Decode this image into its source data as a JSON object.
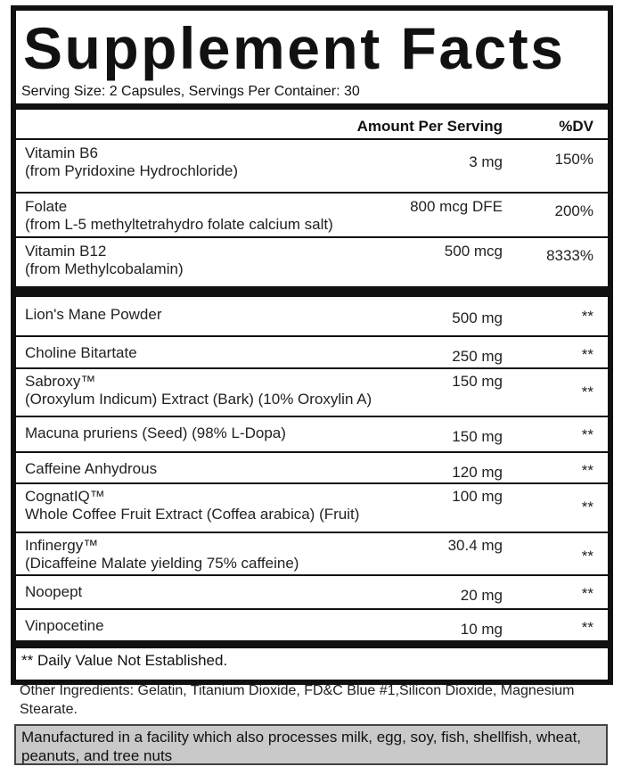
{
  "title": "Supplement Facts",
  "serving": "Serving Size: 2 Capsules, Servings Per Container: 30",
  "header": {
    "amount": "Amount Per Serving",
    "dv": "%DV"
  },
  "vitamins": [
    {
      "name": "Vitamin B6",
      "source": "(from Pyridoxine Hydrochloride)",
      "amount": "3 mg",
      "dv": "150%"
    },
    {
      "name": "Folate",
      "source": "(from L-5 methyltetrahydro folate calcium salt)",
      "amount": "800 mcg DFE",
      "dv": "200%"
    },
    {
      "name": "Vitamin B12",
      "source": "(from Methylcobalamin)",
      "amount": "500 mcg",
      "dv": "8333%"
    }
  ],
  "ingredients": [
    {
      "name": "Lion's Mane Powder",
      "amount": "500 mg",
      "dv": "**"
    },
    {
      "name": "Choline Bitartate",
      "amount": "250 mg",
      "dv": "**"
    },
    {
      "name": "Sabroxy™",
      "source": "(Oroxylum Indicum) Extract (Bark) (10% Oroxylin A)",
      "amount": "150 mg",
      "dv": "**"
    },
    {
      "name": "Macuna pruriens (Seed) (98% L-Dopa)",
      "amount": "150 mg",
      "dv": "**"
    },
    {
      "name": "Caffeine Anhydrous",
      "amount": "120 mg",
      "dv": "**"
    },
    {
      "name": "CognatIQ™",
      "source": "Whole Coffee Fruit Extract (Coffea arabica) (Fruit)",
      "amount": "100 mg",
      "dv": "**"
    },
    {
      "name": "Infinergy™",
      "source": "(Dicaffeine Malate yielding 75% caffeine)",
      "amount": "30.4 mg",
      "dv": "**"
    },
    {
      "name": "Noopept",
      "amount": "20 mg",
      "dv": "**"
    },
    {
      "name": "Vinpocetine",
      "amount": "10 mg",
      "dv": "**"
    }
  ],
  "footnote": "** Daily Value Not Established.",
  "other_ingredients": "Other Ingredients: Gelatin, Titanium Dioxide, FD&C Blue #1,Silicon Dioxide, Magnesium Stearate.",
  "allergen": "Manufactured in a facility which also processes milk, egg, soy, fish, shellfish, wheat, peanuts, and tree nuts"
}
